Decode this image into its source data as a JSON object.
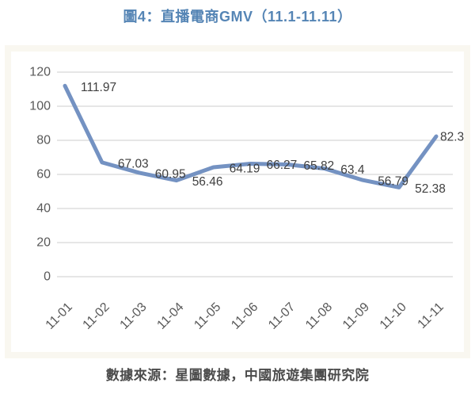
{
  "title": {
    "text": "圖4：直播電商GMV（11.1-11.11）"
  },
  "source_note": "數據來源：星圖數據，中國旅遊集團研究院",
  "chart_data": {
    "type": "line",
    "title": "圖4：直播電商GMV（11.1-11.11）",
    "categories": [
      "11-01",
      "11-02",
      "11-03",
      "11-04",
      "11-05",
      "11-06",
      "11-07",
      "11-08",
      "11-09",
      "11-10",
      "11-11"
    ],
    "values": [
      111.97,
      67.03,
      60.95,
      56.46,
      64.19,
      66.27,
      65.82,
      63.4,
      56.79,
      52.38,
      82.3
    ],
    "data_labels": [
      "111.97",
      "67.03",
      "60.95",
      "56.46",
      "64.19",
      "66.27",
      "65.82",
      "63.4",
      "56.79",
      "52.38",
      "82.3"
    ],
    "xlabel": "",
    "ylabel": "",
    "ylim": [
      0,
      120
    ],
    "yticks": [
      0,
      20,
      40,
      60,
      80,
      100,
      120
    ],
    "grid": true,
    "legend": "none",
    "colors": {
      "line": "#7492c2",
      "gridline": "#d6d6d6",
      "axis_tick_label": "#595959",
      "data_label": "#3f3f3f",
      "title": "#5585b5",
      "frame_border": "#f9f7f0",
      "source_note": "#4c4c4c"
    }
  }
}
